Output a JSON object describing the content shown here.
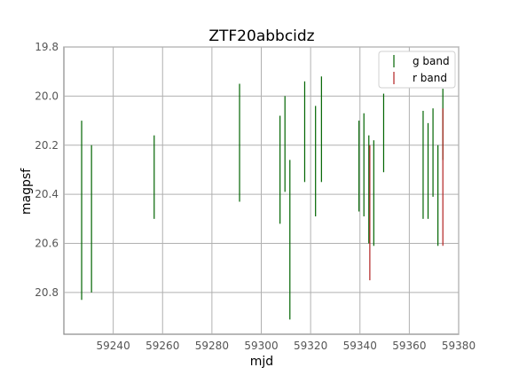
{
  "chart_data": {
    "type": "errorbar",
    "title": "ZTF20abbcidz",
    "xlabel": "mjd",
    "ylabel": "magpsf",
    "xlim": [
      59220,
      59380
    ],
    "ylim": [
      20.97,
      19.8
    ],
    "y_inverted": true,
    "xticks": [
      59240,
      59260,
      59280,
      59300,
      59320,
      59340,
      59360,
      59380
    ],
    "yticks": [
      19.8,
      20.0,
      20.2,
      20.4,
      20.6,
      20.8
    ],
    "xtick_labels": [
      "59240",
      "59260",
      "59280",
      "59300",
      "59320",
      "59340",
      "59360",
      "59380"
    ],
    "ytick_labels": [
      "19.8",
      "20.0",
      "20.2",
      "20.4",
      "20.6",
      "20.8"
    ],
    "grid": true,
    "legend_position": "upper right",
    "series": [
      {
        "name": "g band",
        "color": "#006400",
        "points": [
          {
            "x": 59227.2,
            "y_low": 20.1,
            "y_high": 20.83
          },
          {
            "x": 59231.2,
            "y_low": 20.2,
            "y_high": 20.8
          },
          {
            "x": 59256.6,
            "y_low": 20.16,
            "y_high": 20.5
          },
          {
            "x": 59291.2,
            "y_low": 19.95,
            "y_high": 20.43
          },
          {
            "x": 59307.6,
            "y_low": 20.08,
            "y_high": 20.52
          },
          {
            "x": 59309.6,
            "y_low": 20.0,
            "y_high": 20.39
          },
          {
            "x": 59311.6,
            "y_low": 20.26,
            "y_high": 20.91
          },
          {
            "x": 59317.6,
            "y_low": 19.94,
            "y_high": 20.35
          },
          {
            "x": 59322.0,
            "y_low": 20.04,
            "y_high": 20.49
          },
          {
            "x": 59324.4,
            "y_low": 19.92,
            "y_high": 20.35
          },
          {
            "x": 59339.6,
            "y_low": 20.1,
            "y_high": 20.47
          },
          {
            "x": 59341.6,
            "y_low": 20.07,
            "y_high": 20.49
          },
          {
            "x": 59343.6,
            "y_low": 20.16,
            "y_high": 20.6
          },
          {
            "x": 59345.6,
            "y_low": 20.18,
            "y_high": 20.61
          },
          {
            "x": 59349.6,
            "y_low": 19.99,
            "y_high": 20.31
          },
          {
            "x": 59365.6,
            "y_low": 20.06,
            "y_high": 20.5
          },
          {
            "x": 59367.6,
            "y_low": 20.11,
            "y_high": 20.5
          },
          {
            "x": 59369.6,
            "y_low": 20.05,
            "y_high": 20.41
          },
          {
            "x": 59371.6,
            "y_low": 20.2,
            "y_high": 20.61
          },
          {
            "x": 59373.6,
            "y_low": 19.97,
            "y_high": 20.26
          }
        ]
      },
      {
        "name": "r band",
        "color": "#b22222",
        "points": [
          {
            "x": 59344.0,
            "y_low": 20.2,
            "y_high": 20.75
          },
          {
            "x": 59373.6,
            "y_low": 20.05,
            "y_high": 20.61
          }
        ]
      }
    ]
  }
}
